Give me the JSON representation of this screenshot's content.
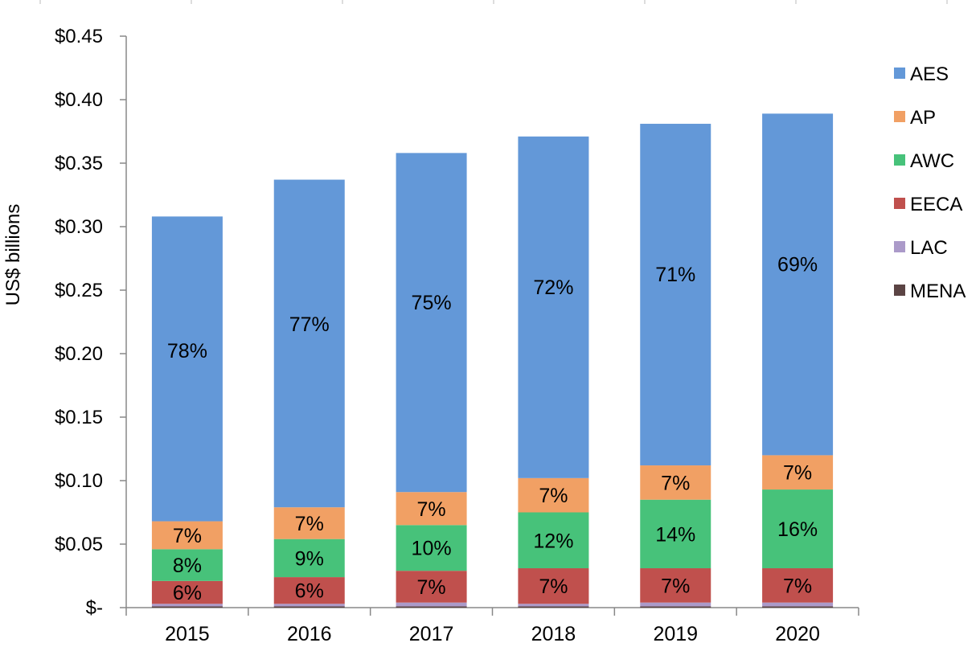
{
  "chart_data": {
    "type": "bar",
    "stacked": true,
    "title": "",
    "xlabel": "",
    "ylabel": "US$ billions",
    "ylim": [
      0,
      0.45
    ],
    "yticks": [
      0,
      0.05,
      0.1,
      0.15,
      0.2,
      0.25,
      0.3,
      0.35,
      0.4,
      0.45
    ],
    "ytick_labels": [
      "$-",
      "$0.05",
      "$0.10",
      "$0.15",
      "$0.20",
      "$0.25",
      "$0.30",
      "$0.35",
      "$0.40",
      "$0.45"
    ],
    "categories": [
      "2015",
      "2016",
      "2017",
      "2018",
      "2019",
      "2020"
    ],
    "grid": false,
    "legend_position": "right",
    "series": [
      {
        "name": "MENA",
        "color": "#5b4444",
        "values": [
          0.001,
          0.001,
          0.001,
          0.001,
          0.001,
          0.001
        ],
        "labels": [
          "",
          "",
          "",
          "",
          "",
          ""
        ]
      },
      {
        "name": "LAC",
        "color": "#ab9ac9",
        "values": [
          0.002,
          0.002,
          0.003,
          0.002,
          0.003,
          0.003
        ],
        "labels": [
          "",
          "",
          "",
          "",
          "",
          ""
        ]
      },
      {
        "name": "EECA",
        "color": "#c0504d",
        "values": [
          0.018,
          0.021,
          0.025,
          0.028,
          0.027,
          0.027
        ],
        "labels": [
          "6%",
          "6%",
          "7%",
          "7%",
          "7%",
          "7%"
        ]
      },
      {
        "name": "AWC",
        "color": "#47c27a",
        "values": [
          0.025,
          0.03,
          0.036,
          0.044,
          0.054,
          0.062
        ],
        "labels": [
          "8%",
          "9%",
          "10%",
          "12%",
          "14%",
          "16%"
        ]
      },
      {
        "name": "AP",
        "color": "#f1a064",
        "values": [
          0.022,
          0.025,
          0.026,
          0.027,
          0.027,
          0.027
        ],
        "labels": [
          "7%",
          "7%",
          "7%",
          "7%",
          "7%",
          "7%"
        ]
      },
      {
        "name": "AES",
        "color": "#6398d8",
        "values": [
          0.24,
          0.258,
          0.267,
          0.269,
          0.269,
          0.269
        ],
        "labels": [
          "78%",
          "77%",
          "75%",
          "72%",
          "71%",
          "69%"
        ]
      }
    ],
    "legend_order": [
      "AES",
      "AP",
      "AWC",
      "EECA",
      "LAC",
      "MENA"
    ]
  }
}
